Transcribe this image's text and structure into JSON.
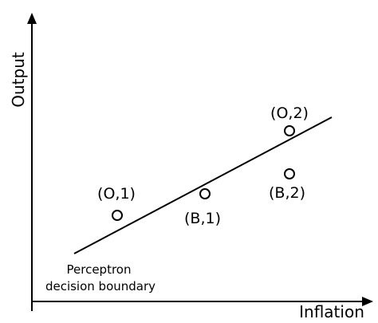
{
  "axes": {
    "y_label": "Output",
    "x_label": "Inflation"
  },
  "points": [
    {
      "id": "o1",
      "label": "(O,1)"
    },
    {
      "id": "b1",
      "label": "(B,1)"
    },
    {
      "id": "o2",
      "label": "(O,2)"
    },
    {
      "id": "b2",
      "label": "(B,2)"
    }
  ],
  "boundary": {
    "line1": "Perceptron",
    "line2": "decision boundary"
  },
  "colors": {
    "ink": "#000000",
    "background": "#ffffff"
  }
}
